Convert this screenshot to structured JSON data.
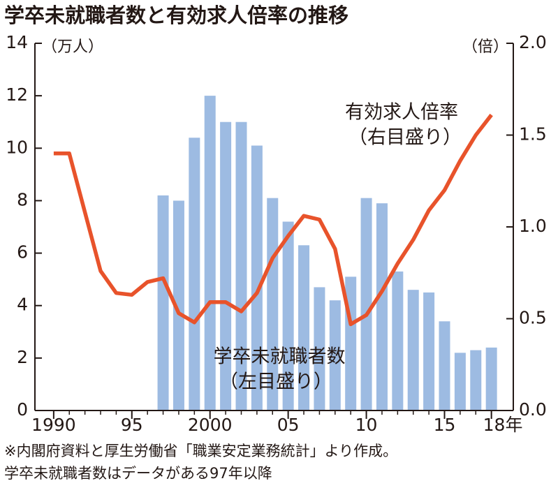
{
  "chart_data": {
    "type": "bar+line",
    "title": "学卒未就職者数と有効求人倍率の推移",
    "x": [
      1990,
      1991,
      1992,
      1993,
      1994,
      1995,
      1996,
      1997,
      1998,
      1999,
      2000,
      2001,
      2002,
      2003,
      2004,
      2005,
      2006,
      2007,
      2008,
      2009,
      2010,
      2011,
      2012,
      2013,
      2014,
      2015,
      2016,
      2017,
      2018
    ],
    "xlim": [
      1988.8,
      2019.4
    ],
    "xticks": [
      {
        "value": 1990,
        "label": "1990"
      },
      {
        "value": 1995,
        "label": "95"
      },
      {
        "value": 2000,
        "label": "2000"
      },
      {
        "value": 2005,
        "label": "05"
      },
      {
        "value": 2010,
        "label": "10"
      },
      {
        "value": 2015,
        "label": "15"
      },
      {
        "value": 2018,
        "label": "18年"
      }
    ],
    "ylim": [
      0,
      14
    ],
    "yticks": [
      0,
      2,
      4,
      6,
      8,
      10,
      12,
      14
    ],
    "y_label": "（万人）",
    "y2lim": [
      0,
      2
    ],
    "y2ticks": [
      {
        "value": 0,
        "label": "0.0"
      },
      0.5,
      {
        "value": 1,
        "label": "1.0"
      },
      1.5,
      {
        "value": 2,
        "label": "2.0"
      }
    ],
    "y2_label": "（倍）",
    "series": [
      {
        "name": "学卒未就職者数",
        "note": "（左目盛り）",
        "color": "#9dbbe2",
        "kind": "bar",
        "values": [
          null,
          null,
          null,
          null,
          null,
          null,
          null,
          8.2,
          8.0,
          10.4,
          12.0,
          11.0,
          11.0,
          10.1,
          8.1,
          7.2,
          6.3,
          4.7,
          4.2,
          5.1,
          8.1,
          7.9,
          5.3,
          4.6,
          4.5,
          3.4,
          2.2,
          2.3,
          2.4
        ]
      },
      {
        "name": "有効求人倍率",
        "note": "（右目盛り）",
        "color": "#e8532b",
        "kind": "line",
        "axis": "y2",
        "values": [
          1.4,
          1.4,
          1.08,
          0.76,
          0.64,
          0.63,
          0.7,
          0.72,
          0.53,
          0.48,
          0.59,
          0.59,
          0.54,
          0.64,
          0.83,
          0.95,
          1.06,
          1.04,
          0.88,
          0.47,
          0.52,
          0.65,
          0.8,
          0.93,
          1.09,
          1.2,
          1.36,
          1.5,
          1.61
        ]
      }
    ],
    "footnotes": [
      "※内閣府資料と厚生労働省「職業安定業務統計」より作成。",
      "学卒未就職者数はデータがある97年以降"
    ]
  }
}
